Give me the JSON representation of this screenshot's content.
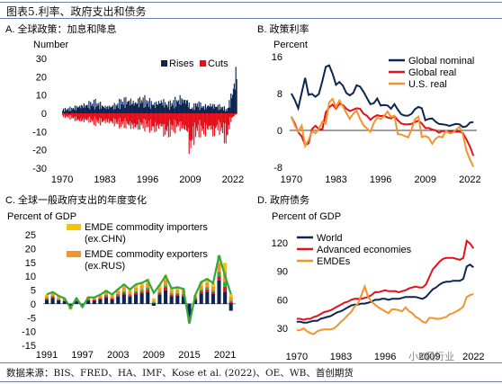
{
  "header": {
    "title": "图表5.利率、政府支出和债务"
  },
  "footer": {
    "source": "数据来源：BIS、FRED、HA、IMF、Kose et al. (2022)、OE、WB、首创期货"
  },
  "watermark": {
    "text": "小K侃行业"
  },
  "colors": {
    "navy": "#0d2552",
    "red": "#e3111b",
    "orange": "#f4922c",
    "gold": "#f5c400",
    "green": "#2fa83c",
    "frame": "#6d84a8"
  },
  "panels": {
    "a": {
      "label": "A. 全球政策：加息和降息",
      "unit": "Number"
    },
    "b": {
      "label": "B. 政策利率",
      "unit": "Percent"
    },
    "c": {
      "label": "C. 全球一般政府支出的年度变化",
      "unit": "Percent of GDP"
    },
    "d": {
      "label": "D. 政府债务",
      "unit": "Percent of GDP"
    }
  },
  "chart_data": [
    {
      "id": "a",
      "type": "bar",
      "x": [
        1970,
        2023
      ],
      "xticks": [
        "1970",
        "1983",
        "1996",
        "2009",
        "2022"
      ],
      "yticks": [
        "30",
        "20",
        "10",
        "0",
        "-10",
        "-20",
        "-30"
      ],
      "ylim": [
        -30,
        30
      ],
      "legend": [
        "Rises",
        "Cuts"
      ],
      "series": [
        {
          "name": "Rises",
          "color": "#0d2552",
          "anchors": [
            [
              1970,
              1.8
            ],
            [
              1973,
              2.5
            ],
            [
              1975,
              3.6
            ],
            [
              1978,
              4.5
            ],
            [
              1980,
              5.2
            ],
            [
              1983,
              3.2
            ],
            [
              1986,
              3.8
            ],
            [
              1988,
              5.8
            ],
            [
              1990,
              6.4
            ],
            [
              1992,
              5.3
            ],
            [
              1994,
              6.8
            ],
            [
              1996,
              5.7
            ],
            [
              1998,
              4.6
            ],
            [
              2000,
              6.2
            ],
            [
              2002,
              4.3
            ],
            [
              2004,
              5.6
            ],
            [
              2006,
              7.2
            ],
            [
              2008,
              6.3
            ],
            [
              2009,
              2.2
            ],
            [
              2011,
              4.8
            ],
            [
              2013,
              3.2
            ],
            [
              2015,
              4.3
            ],
            [
              2017,
              3.6
            ],
            [
              2019,
              2.8
            ],
            [
              2020,
              1.4
            ],
            [
              2021,
              6.4
            ],
            [
              2022,
              12.5
            ],
            [
              2022.8,
              20.5
            ]
          ]
        },
        {
          "name": "Cuts",
          "color": "#e3111b",
          "anchors": [
            [
              1970,
              -1.4
            ],
            [
              1973,
              -2.4
            ],
            [
              1975,
              -3.8
            ],
            [
              1978,
              -3.4
            ],
            [
              1980,
              -4.6
            ],
            [
              1983,
              -4.2
            ],
            [
              1986,
              -4.8
            ],
            [
              1988,
              -5.5
            ],
            [
              1990,
              -5.8
            ],
            [
              1992,
              -7.2
            ],
            [
              1994,
              -6.1
            ],
            [
              1996,
              -6.4
            ],
            [
              1998,
              -8.0
            ],
            [
              2000,
              -6.2
            ],
            [
              2001,
              -9.8
            ],
            [
              2003,
              -8.4
            ],
            [
              2005,
              -6.2
            ],
            [
              2008,
              -8.8
            ],
            [
              2008.8,
              -20.2
            ],
            [
              2009.5,
              -12.4
            ],
            [
              2011,
              -8.6
            ],
            [
              2013,
              -9.2
            ],
            [
              2015,
              -7.3
            ],
            [
              2016,
              -10.8
            ],
            [
              2017,
              -6.8
            ],
            [
              2019,
              -9.2
            ],
            [
              2020,
              -13.6
            ],
            [
              2020.5,
              -8.2
            ],
            [
              2021,
              -4.1
            ],
            [
              2022,
              -1.6
            ],
            [
              2022.8,
              -0.5
            ]
          ]
        }
      ]
    },
    {
      "id": "b",
      "type": "line",
      "x": [
        1970,
        1971,
        1972,
        1973,
        1974,
        1975,
        1976,
        1977,
        1978,
        1979,
        1980,
        1981,
        1982,
        1983,
        1984,
        1985,
        1986,
        1987,
        1988,
        1989,
        1990,
        1991,
        1992,
        1993,
        1994,
        1995,
        1996,
        1997,
        1998,
        1999,
        2000,
        2001,
        2002,
        2003,
        2004,
        2005,
        2006,
        2007,
        2008,
        2009,
        2010,
        2011,
        2012,
        2013,
        2014,
        2015,
        2016,
        2017,
        2018,
        2019,
        2020,
        2021,
        2022,
        2023
      ],
      "xticks": [
        "1970",
        "1983",
        "1996",
        "2009",
        "2022"
      ],
      "yticks": [
        "16",
        "8",
        "0",
        "-8"
      ],
      "ylim": [
        -8,
        16
      ],
      "series": [
        {
          "name": "Global nominal",
          "color": "#0d2552",
          "values": [
            8,
            6.6,
            4.8,
            8.2,
            11.4,
            7.7,
            7.9,
            7.3,
            7.9,
            10.7,
            13.8,
            14.1,
            12.3,
            9.9,
            10.5,
            9.7,
            8.1,
            7.6,
            8.1,
            9.8,
            9.5,
            8.4,
            7,
            5.7,
            5.9,
            6.9,
            5.4,
            5.5,
            5.4,
            4.7,
            5.7,
            4.5,
            3.5,
            3.2,
            3.2,
            3.6,
            4.6,
            5.1,
            4.8,
            2.2,
            2.5,
            2.6,
            1.9,
            1.4,
            1.3,
            1.2,
            1,
            1.2,
            1.4,
            1.3,
            0.7,
            0.9,
            1.7,
            1.8
          ]
        },
        {
          "name": "Global real",
          "color": "#e3111b",
          "values": [
            2.9,
            1.5,
            -0.4,
            -1.3,
            -3.2,
            -2.8,
            0.3,
            1,
            0.3,
            0.2,
            3.9,
            5,
            5.6,
            4.7,
            5.8,
            5.5,
            4.7,
            4.2,
            4.5,
            4.8,
            4.7,
            3.6,
            3.2,
            2.3,
            2.9,
            3.3,
            3.1,
            3.2,
            2.8,
            2.6,
            3.1,
            2.2,
            1.5,
            1.3,
            1.3,
            1.4,
            1.8,
            2.1,
            1.5,
            0.5,
            0.5,
            0.2,
            0,
            -0.5,
            -0.1,
            -0.3,
            -0.2,
            -0.3,
            -0.3,
            -0.3,
            -0.6,
            -2,
            -3.5,
            -5.5
          ]
        },
        {
          "name": "U.S. real",
          "color": "#f4922c",
          "values": [
            3,
            1.1,
            -0.3,
            1,
            -3.4,
            -2.1,
            -0.2,
            -0.6,
            0.3,
            1.9,
            1.5,
            6.1,
            6.8,
            5,
            6.5,
            5.2,
            3.8,
            2.5,
            3.6,
            4.3,
            2.5,
            1.1,
            0.4,
            -0.3,
            1.6,
            2.8,
            2.5,
            3.1,
            4.1,
            2.9,
            3.2,
            -0.8,
            -0.9,
            -1.2,
            -1.5,
            0.2,
            2.4,
            3,
            -1.4,
            -1.2,
            -1.6,
            -2.9,
            -1.8,
            -1.3,
            -1.5,
            -0.1,
            -0.6,
            -0.5,
            0.2,
            0.8,
            -1,
            -4.5,
            -6.3,
            -7.9
          ]
        }
      ]
    },
    {
      "id": "c",
      "type": "bar",
      "x": [
        1991,
        1992,
        1993,
        1994,
        1995,
        1996,
        1997,
        1998,
        1999,
        2000,
        2001,
        2002,
        2003,
        2004,
        2005,
        2006,
        2007,
        2008,
        2009,
        2010,
        2011,
        2012,
        2013,
        2014,
        2015,
        2016,
        2017,
        2018,
        2019,
        2020,
        2021,
        2022
      ],
      "xticks": [
        "1991",
        "1997",
        "2003",
        "2009",
        "2015",
        "2021"
      ],
      "yticks": [
        "25",
        "20",
        "15",
        "10",
        "5",
        "0",
        "-5",
        "-10",
        "-15"
      ],
      "ylim": [
        -15,
        25
      ],
      "legend": [
        "EMDE commodity importers (ex.CHN)",
        "EMDE commodity exporters (ex.RUS)"
      ],
      "series": [
        {
          "name": "EMDE commodity importers (ex.CHN)",
          "color": "#f5c400",
          "values": [
            0.6,
            0.7,
            0.5,
            0.3,
            -0.3,
            0.3,
            -0.2,
            0.4,
            0.4,
            0.6,
            0.8,
            0.6,
            0.9,
            1.2,
            0.9,
            1.2,
            1.3,
            1.5,
            0.8,
            1.2,
            1.7,
            0.9,
            1,
            0.9,
            -0.4,
            0.5,
            1.4,
            1.5,
            1.3,
            2.8,
            3.2,
            1.1
          ]
        },
        {
          "name": "EMDE commodity exporters (ex.RUS)",
          "color": "#f4922c",
          "values": [
            0.7,
            0.8,
            0.6,
            0.4,
            -0.5,
            0.4,
            -0.3,
            0.5,
            0.5,
            0.7,
            1,
            0.7,
            1,
            1.4,
            1,
            1.3,
            1.5,
            1.7,
            0.6,
            1.3,
            1.9,
            1,
            1.1,
            1,
            -0.8,
            0.6,
            1.5,
            1.7,
            1.4,
            3.2,
            3.6,
            1.2
          ]
        },
        {
          "name": "green",
          "color": "#2fa83c",
          "values": [
            0.3,
            0.4,
            0.2,
            0.2,
            -0.2,
            0.2,
            -0.1,
            0.2,
            0.2,
            0.3,
            0.5,
            0.3,
            0.5,
            0.6,
            0.4,
            0.6,
            0.7,
            0.8,
            0.3,
            0.6,
            0.9,
            0.5,
            0.5,
            0.5,
            -0.4,
            0.3,
            0.7,
            0.8,
            0.6,
            1.5,
            1.8,
            0.6
          ]
        },
        {
          "name": "red",
          "color": "#e3111b",
          "values": [
            0.3,
            0.4,
            0.2,
            0.2,
            -0.2,
            0.2,
            -0.1,
            0.3,
            0.3,
            0.3,
            0.5,
            0.3,
            0.5,
            0.6,
            0.5,
            0.6,
            0.7,
            0.8,
            0.3,
            0.6,
            0.9,
            0.5,
            0.5,
            0.5,
            -0.4,
            0.3,
            0.7,
            0.8,
            0.6,
            1.5,
            1.8,
            0.6
          ]
        },
        {
          "name": "navy",
          "color": "#0d2552",
          "values": [
            1.5,
            2.1,
            1.3,
            1,
            -0.9,
            1,
            -0.6,
            1.1,
            1.1,
            1.6,
            2.2,
            1.6,
            2.6,
            3.4,
            2.6,
            3.4,
            3.7,
            4.2,
            -0.7,
            3.2,
            4.9,
            2.7,
            2.9,
            2.6,
            -4.5,
            1.5,
            3.8,
            4.4,
            3.6,
            8.5,
            4.4,
            -2.5
          ]
        },
        {
          "name": "line",
          "color": "#2fa83c",
          "values": [
            3.4,
            4.3,
            2.9,
            2,
            -1.5,
            2,
            -1.1,
            2.4,
            2.3,
            3.3,
            4.7,
            3.4,
            5.3,
            7,
            5.2,
            7,
            7.6,
            8.6,
            4,
            6.9,
            10.1,
            5.6,
            6,
            5.4,
            -7.2,
            3.2,
            7.9,
            9,
            7.5,
            17.6,
            10.2,
            3.5
          ]
        }
      ]
    },
    {
      "id": "d",
      "type": "line",
      "x": [
        1970,
        1971,
        1972,
        1973,
        1974,
        1975,
        1976,
        1977,
        1978,
        1979,
        1980,
        1981,
        1982,
        1983,
        1984,
        1985,
        1986,
        1987,
        1988,
        1989,
        1990,
        1991,
        1992,
        1993,
        1994,
        1995,
        1996,
        1997,
        1998,
        1999,
        2000,
        2001,
        2002,
        2003,
        2004,
        2005,
        2006,
        2007,
        2008,
        2009,
        2010,
        2011,
        2012,
        2013,
        2014,
        2015,
        2016,
        2017,
        2018,
        2019,
        2020,
        2021,
        2022
      ],
      "xticks": [
        "1970",
        "1983",
        "1996",
        "2009",
        "2022"
      ],
      "yticks": [
        "120",
        "90",
        "60",
        "30"
      ],
      "ylim": [
        15,
        135
      ],
      "legend": [
        "World",
        "Advanced economies",
        "EMDEs"
      ],
      "series": [
        {
          "name": "World",
          "color": "#0d2552",
          "values": [
            37,
            37,
            36,
            36,
            37,
            38,
            38,
            40,
            41,
            42,
            43,
            45,
            47,
            48,
            50,
            52,
            54,
            55,
            55,
            56,
            56,
            57,
            58,
            60,
            60,
            61,
            61,
            60,
            61,
            61,
            61,
            62,
            63,
            63,
            63,
            63,
            62,
            61,
            63,
            67,
            71,
            73,
            76,
            78,
            79,
            79,
            80,
            80,
            80,
            82,
            95,
            97,
            94
          ]
        },
        {
          "name": "Advanced economies",
          "color": "#e3111b",
          "values": [
            40,
            40,
            39,
            40,
            40,
            42,
            43,
            45,
            47,
            48,
            49,
            51,
            53,
            55,
            57,
            58,
            60,
            61,
            61,
            61,
            62,
            63,
            65,
            68,
            68,
            69,
            70,
            69,
            69,
            69,
            68,
            69,
            70,
            72,
            73,
            74,
            73,
            73,
            76,
            84,
            92,
            96,
            100,
            103,
            104,
            104,
            104,
            103,
            102,
            104,
            122,
            119,
            114
          ]
        },
        {
          "name": "EMDEs",
          "color": "#f4922c",
          "values": [
            28,
            28,
            30,
            27,
            25,
            24,
            27,
            28,
            29,
            29,
            29,
            30,
            33,
            37,
            40,
            44,
            47,
            53,
            56,
            65,
            74,
            63,
            58,
            55,
            52,
            50,
            48,
            46,
            50,
            50,
            49,
            48,
            52,
            48,
            46,
            42,
            40,
            37,
            36,
            41,
            41,
            40,
            40,
            41,
            42,
            45,
            46,
            48,
            50,
            53,
            63,
            65,
            66
          ]
        }
      ]
    }
  ]
}
